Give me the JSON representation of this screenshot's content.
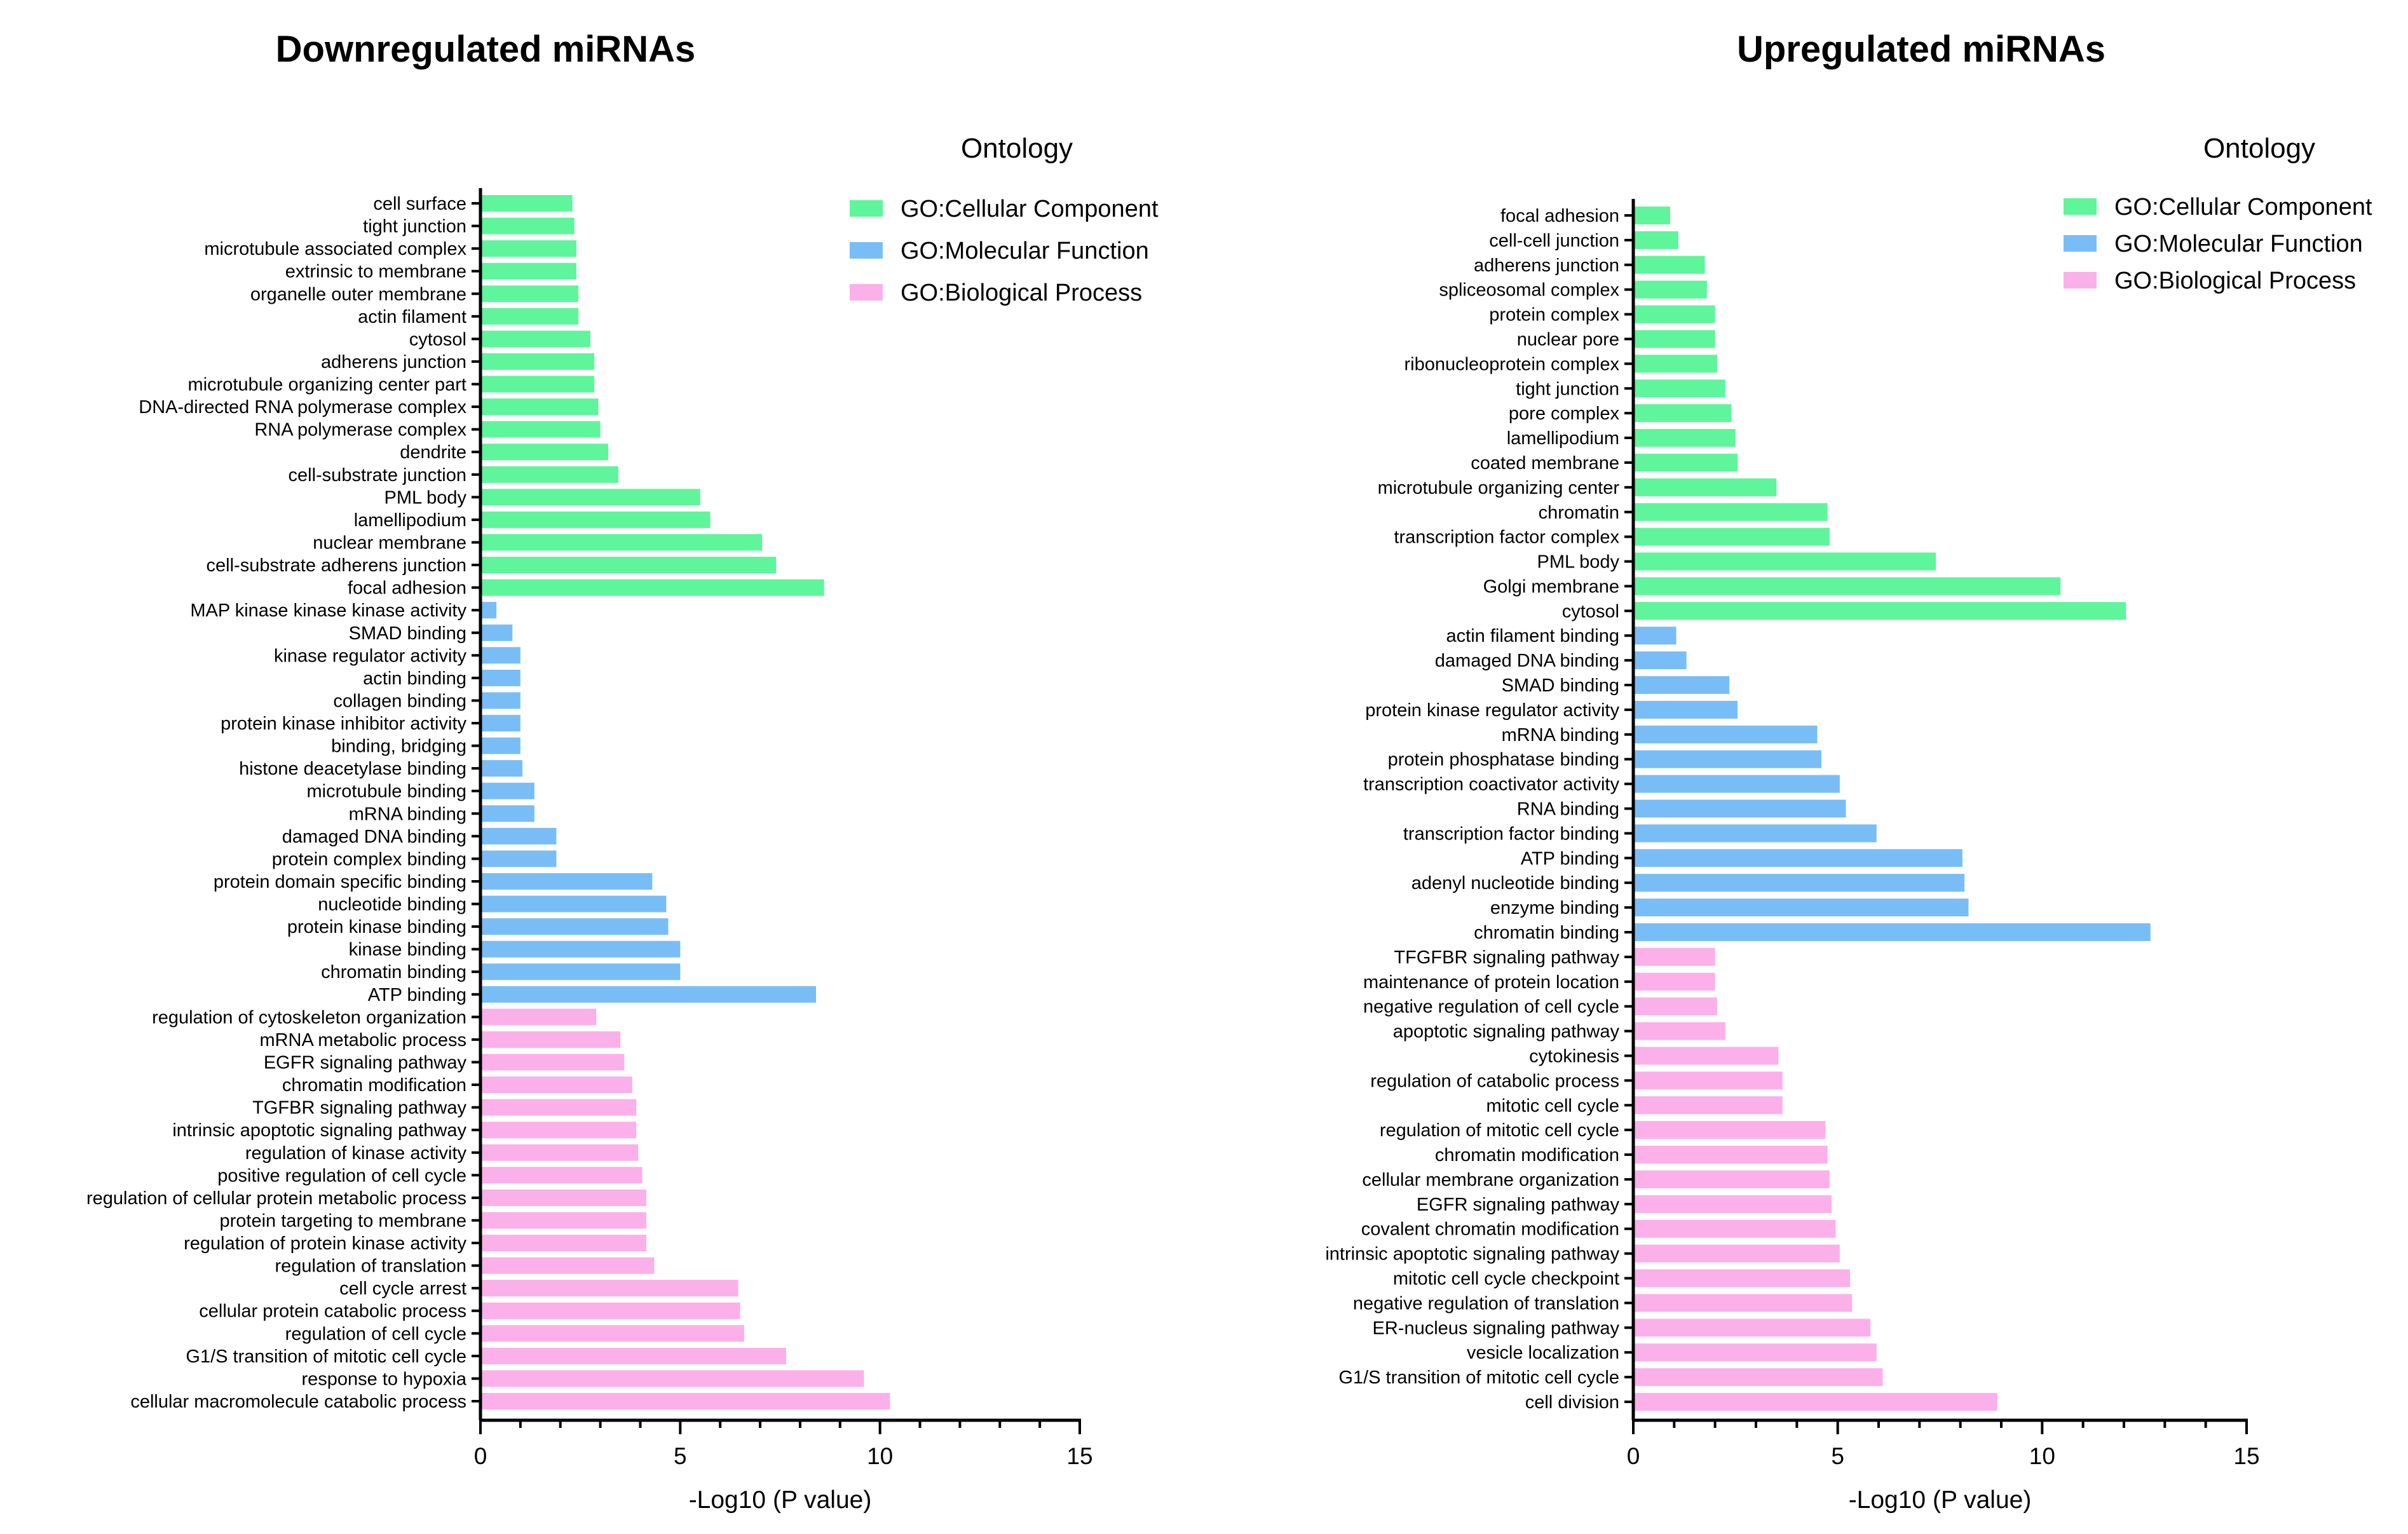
{
  "colors": {
    "cellular_component": "#5ef59b",
    "molecular_function": "#79bdf7",
    "biological_process": "#fbb0ea",
    "axis": "#000000",
    "background": "#ffffff"
  },
  "chart_data": [
    {
      "type": "bar",
      "orientation": "horizontal",
      "title": "Downregulated miRNAs",
      "xlabel": "-Log10 (P value)",
      "ylabel": "",
      "xlim": [
        0,
        15
      ],
      "xticks": [
        0,
        5,
        10,
        15
      ],
      "grid": false,
      "legend": {
        "title": "Ontology",
        "position": "top-right",
        "entries": [
          {
            "key": "cc",
            "label": "GO:Cellular Component"
          },
          {
            "key": "mf",
            "label": "GO:Molecular Function"
          },
          {
            "key": "bp",
            "label": "GO:Biological Process"
          }
        ]
      },
      "bars": [
        {
          "label": "cell surface",
          "value": 2.3,
          "group": "cc"
        },
        {
          "label": "tight junction",
          "value": 2.35,
          "group": "cc"
        },
        {
          "label": "microtubule associated complex",
          "value": 2.4,
          "group": "cc"
        },
        {
          "label": "extrinsic to membrane",
          "value": 2.4,
          "group": "cc"
        },
        {
          "label": "organelle outer membrane",
          "value": 2.45,
          "group": "cc"
        },
        {
          "label": "actin filament",
          "value": 2.45,
          "group": "cc"
        },
        {
          "label": "cytosol",
          "value": 2.75,
          "group": "cc"
        },
        {
          "label": "adherens junction",
          "value": 2.85,
          "group": "cc"
        },
        {
          "label": "microtubule organizing center part",
          "value": 2.85,
          "group": "cc"
        },
        {
          "label": "DNA-directed RNA polymerase complex",
          "value": 2.95,
          "group": "cc"
        },
        {
          "label": "RNA polymerase complex",
          "value": 3.0,
          "group": "cc"
        },
        {
          "label": "dendrite",
          "value": 3.2,
          "group": "cc"
        },
        {
          "label": "cell-substrate junction",
          "value": 3.45,
          "group": "cc"
        },
        {
          "label": "PML body",
          "value": 5.5,
          "group": "cc"
        },
        {
          "label": "lamellipodium",
          "value": 5.75,
          "group": "cc"
        },
        {
          "label": "nuclear membrane",
          "value": 7.05,
          "group": "cc"
        },
        {
          "label": "cell-substrate adherens junction",
          "value": 7.4,
          "group": "cc"
        },
        {
          "label": "focal adhesion",
          "value": 8.6,
          "group": "cc"
        },
        {
          "label": "MAP kinase kinase kinase activity",
          "value": 0.4,
          "group": "mf"
        },
        {
          "label": "SMAD binding",
          "value": 0.8,
          "group": "mf"
        },
        {
          "label": "kinase regulator activity",
          "value": 1.0,
          "group": "mf"
        },
        {
          "label": "actin binding",
          "value": 1.0,
          "group": "mf"
        },
        {
          "label": "collagen binding",
          "value": 1.0,
          "group": "mf"
        },
        {
          "label": "protein kinase inhibitor activity",
          "value": 1.0,
          "group": "mf"
        },
        {
          "label": "binding, bridging",
          "value": 1.0,
          "group": "mf"
        },
        {
          "label": "histone deacetylase binding",
          "value": 1.05,
          "group": "mf"
        },
        {
          "label": "microtubule binding",
          "value": 1.35,
          "group": "mf"
        },
        {
          "label": "mRNA binding",
          "value": 1.35,
          "group": "mf"
        },
        {
          "label": "damaged DNA binding",
          "value": 1.9,
          "group": "mf"
        },
        {
          "label": "protein complex binding",
          "value": 1.9,
          "group": "mf"
        },
        {
          "label": "protein domain specific binding",
          "value": 4.3,
          "group": "mf"
        },
        {
          "label": "nucleotide binding",
          "value": 4.65,
          "group": "mf"
        },
        {
          "label": "protein kinase binding",
          "value": 4.7,
          "group": "mf"
        },
        {
          "label": "kinase binding",
          "value": 5.0,
          "group": "mf"
        },
        {
          "label": "chromatin binding",
          "value": 5.0,
          "group": "mf"
        },
        {
          "label": "ATP binding",
          "value": 8.4,
          "group": "mf"
        },
        {
          "label": "regulation of cytoskeleton organization",
          "value": 2.9,
          "group": "bp"
        },
        {
          "label": "mRNA metabolic process",
          "value": 3.5,
          "group": "bp"
        },
        {
          "label": "EGFR signaling pathway",
          "value": 3.6,
          "group": "bp"
        },
        {
          "label": "chromatin modification",
          "value": 3.8,
          "group": "bp"
        },
        {
          "label": "TGFBR signaling pathway",
          "value": 3.9,
          "group": "bp"
        },
        {
          "label": "intrinsic apoptotic signaling pathway",
          "value": 3.9,
          "group": "bp"
        },
        {
          "label": "regulation of kinase activity",
          "value": 3.95,
          "group": "bp"
        },
        {
          "label": "positive regulation of cell cycle",
          "value": 4.05,
          "group": "bp"
        },
        {
          "label": "regulation of cellular protein metabolic process",
          "value": 4.15,
          "group": "bp"
        },
        {
          "label": "protein targeting to membrane",
          "value": 4.15,
          "group": "bp"
        },
        {
          "label": "regulation of protein kinase activity",
          "value": 4.15,
          "group": "bp"
        },
        {
          "label": "regulation of translation",
          "value": 4.35,
          "group": "bp"
        },
        {
          "label": "cell cycle arrest",
          "value": 6.45,
          "group": "bp"
        },
        {
          "label": "cellular protein catabolic process",
          "value": 6.5,
          "group": "bp"
        },
        {
          "label": "regulation of cell cycle",
          "value": 6.6,
          "group": "bp"
        },
        {
          "label": "G1/S transition of mitotic cell cycle",
          "value": 7.65,
          "group": "bp"
        },
        {
          "label": "response to hypoxia",
          "value": 9.6,
          "group": "bp"
        },
        {
          "label": "cellular macromolecule catabolic process",
          "value": 10.25,
          "group": "bp"
        }
      ]
    },
    {
      "type": "bar",
      "orientation": "horizontal",
      "title": "Upregulated miRNAs",
      "xlabel": "-Log10 (P value)",
      "ylabel": "",
      "xlim": [
        0,
        15
      ],
      "xticks": [
        0,
        5,
        10,
        15
      ],
      "grid": false,
      "legend": {
        "title": "Ontology",
        "position": "top-right",
        "entries": [
          {
            "key": "cc",
            "label": "GO:Cellular Component"
          },
          {
            "key": "mf",
            "label": "GO:Molecular Function"
          },
          {
            "key": "bp",
            "label": "GO:Biological Process"
          }
        ]
      },
      "bars": [
        {
          "label": "focal adhesion",
          "value": 0.9,
          "group": "cc"
        },
        {
          "label": "cell-cell junction",
          "value": 1.1,
          "group": "cc"
        },
        {
          "label": "adherens junction",
          "value": 1.75,
          "group": "cc"
        },
        {
          "label": "spliceosomal complex",
          "value": 1.8,
          "group": "cc"
        },
        {
          "label": "protein complex",
          "value": 2.0,
          "group": "cc"
        },
        {
          "label": "nuclear pore",
          "value": 2.0,
          "group": "cc"
        },
        {
          "label": "ribonucleoprotein complex",
          "value": 2.05,
          "group": "cc"
        },
        {
          "label": "tight junction",
          "value": 2.25,
          "group": "cc"
        },
        {
          "label": "pore complex",
          "value": 2.4,
          "group": "cc"
        },
        {
          "label": "lamellipodium",
          "value": 2.5,
          "group": "cc"
        },
        {
          "label": "coated membrane",
          "value": 2.55,
          "group": "cc"
        },
        {
          "label": "microtubule organizing center",
          "value": 3.5,
          "group": "cc"
        },
        {
          "label": "chromatin",
          "value": 4.75,
          "group": "cc"
        },
        {
          "label": "transcription factor complex",
          "value": 4.8,
          "group": "cc"
        },
        {
          "label": "PML body",
          "value": 7.4,
          "group": "cc"
        },
        {
          "label": "Golgi membrane",
          "value": 10.45,
          "group": "cc"
        },
        {
          "label": "cytosol",
          "value": 12.05,
          "group": "cc"
        },
        {
          "label": "actin filament binding",
          "value": 1.05,
          "group": "mf"
        },
        {
          "label": "damaged DNA binding",
          "value": 1.3,
          "group": "mf"
        },
        {
          "label": "SMAD binding",
          "value": 2.35,
          "group": "mf"
        },
        {
          "label": "protein kinase regulator activity",
          "value": 2.55,
          "group": "mf"
        },
        {
          "label": "mRNA binding",
          "value": 4.5,
          "group": "mf"
        },
        {
          "label": "protein phosphatase binding",
          "value": 4.6,
          "group": "mf"
        },
        {
          "label": "transcription coactivator activity",
          "value": 5.05,
          "group": "mf"
        },
        {
          "label": "RNA binding",
          "value": 5.2,
          "group": "mf"
        },
        {
          "label": "transcription factor binding",
          "value": 5.95,
          "group": "mf"
        },
        {
          "label": "ATP binding",
          "value": 8.05,
          "group": "mf"
        },
        {
          "label": "adenyl nucleotide binding",
          "value": 8.1,
          "group": "mf"
        },
        {
          "label": "enzyme binding",
          "value": 8.2,
          "group": "mf"
        },
        {
          "label": "chromatin binding",
          "value": 12.65,
          "group": "mf"
        },
        {
          "label": "TFGFBR signaling pathway",
          "value": 2.0,
          "group": "bp"
        },
        {
          "label": "maintenance of protein location",
          "value": 2.0,
          "group": "bp"
        },
        {
          "label": "negative regulation of cell cycle",
          "value": 2.05,
          "group": "bp"
        },
        {
          "label": "apoptotic signaling pathway",
          "value": 2.25,
          "group": "bp"
        },
        {
          "label": "cytokinesis",
          "value": 3.55,
          "group": "bp"
        },
        {
          "label": "regulation of catabolic process",
          "value": 3.65,
          "group": "bp"
        },
        {
          "label": "mitotic cell cycle",
          "value": 3.65,
          "group": "bp"
        },
        {
          "label": "regulation of mitotic cell cycle",
          "value": 4.7,
          "group": "bp"
        },
        {
          "label": "chromatin modification",
          "value": 4.75,
          "group": "bp"
        },
        {
          "label": "cellular membrane organization",
          "value": 4.8,
          "group": "bp"
        },
        {
          "label": "EGFR signaling pathway",
          "value": 4.85,
          "group": "bp"
        },
        {
          "label": "covalent chromatin modification",
          "value": 4.95,
          "group": "bp"
        },
        {
          "label": "intrinsic apoptotic signaling pathway",
          "value": 5.05,
          "group": "bp"
        },
        {
          "label": "mitotic cell cycle checkpoint",
          "value": 5.3,
          "group": "bp"
        },
        {
          "label": "negative regulation of translation",
          "value": 5.35,
          "group": "bp"
        },
        {
          "label": "ER-nucleus signaling pathway",
          "value": 5.8,
          "group": "bp"
        },
        {
          "label": "vesicle localization",
          "value": 5.95,
          "group": "bp"
        },
        {
          "label": "G1/S transition of mitotic cell cycle",
          "value": 6.1,
          "group": "bp"
        },
        {
          "label": "cell division",
          "value": 8.9,
          "group": "bp"
        }
      ]
    }
  ]
}
